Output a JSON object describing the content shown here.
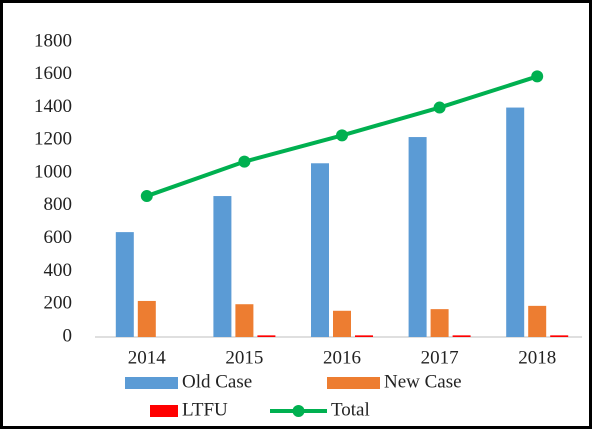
{
  "chart_data": {
    "type": "bar",
    "categories": [
      "2014",
      "2015",
      "2016",
      "2017",
      "2018"
    ],
    "series": [
      {
        "name": "Old Case",
        "color": "#5b9bd5",
        "values": [
          640,
          860,
          1060,
          1220,
          1400
        ]
      },
      {
        "name": "New Case",
        "color": "#ed7d31",
        "values": [
          220,
          200,
          160,
          170,
          190
        ]
      },
      {
        "name": "LTFU",
        "color": "#ff0000",
        "values": [
          0,
          10,
          10,
          10,
          10
        ]
      },
      {
        "name": "Total",
        "type": "line",
        "color": "#00b050",
        "values": [
          860,
          1070,
          1230,
          1400,
          1590
        ]
      }
    ],
    "ylim": [
      0,
      1800
    ],
    "yticks": [
      0,
      200,
      400,
      600,
      800,
      1000,
      1200,
      1400,
      1600,
      1800
    ],
    "grid": false,
    "legend": "bottom"
  }
}
